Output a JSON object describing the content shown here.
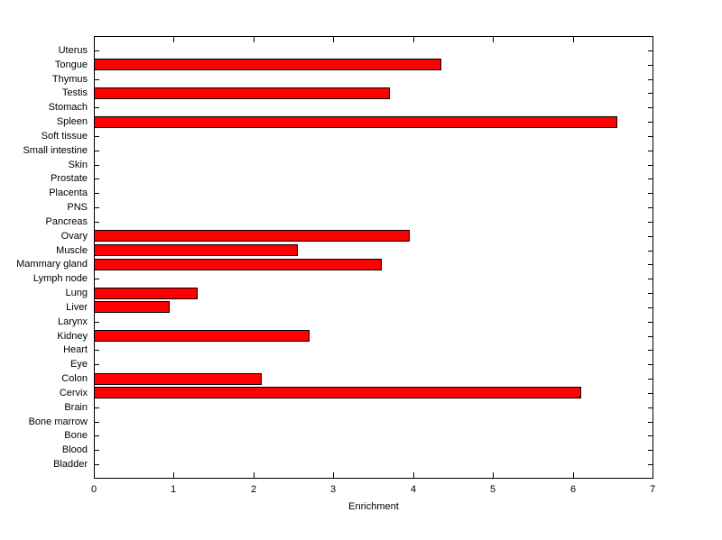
{
  "chart_data": {
    "type": "bar",
    "orientation": "horizontal",
    "title": "",
    "xlabel": "Enrichment",
    "ylabel": "",
    "xlim": [
      0,
      7
    ],
    "x_ticks": [
      0,
      1,
      2,
      3,
      4,
      5,
      6,
      7
    ],
    "grid": false,
    "legend": null,
    "bar_color": "#ff0000",
    "bar_edge_color": "#000000",
    "categories": [
      "Uterus",
      "Tongue",
      "Thymus",
      "Testis",
      "Stomach",
      "Spleen",
      "Soft tissue",
      "Small intestine",
      "Skin",
      "Prostate",
      "Placenta",
      "PNS",
      "Pancreas",
      "Ovary",
      "Muscle",
      "Mammary gland",
      "Lymph node",
      "Lung",
      "Liver",
      "Larynx",
      "Kidney",
      "Heart",
      "Eye",
      "Colon",
      "Cervix",
      "Brain",
      "Bone marrow",
      "Bone",
      "Blood",
      "Bladder"
    ],
    "values": [
      0,
      4.35,
      0,
      3.7,
      0,
      6.55,
      0,
      0,
      0,
      0,
      0,
      0,
      0,
      3.95,
      2.55,
      3.6,
      0,
      1.3,
      0.95,
      0,
      2.7,
      0,
      0,
      2.1,
      6.1,
      0,
      0,
      0,
      0,
      0
    ]
  }
}
